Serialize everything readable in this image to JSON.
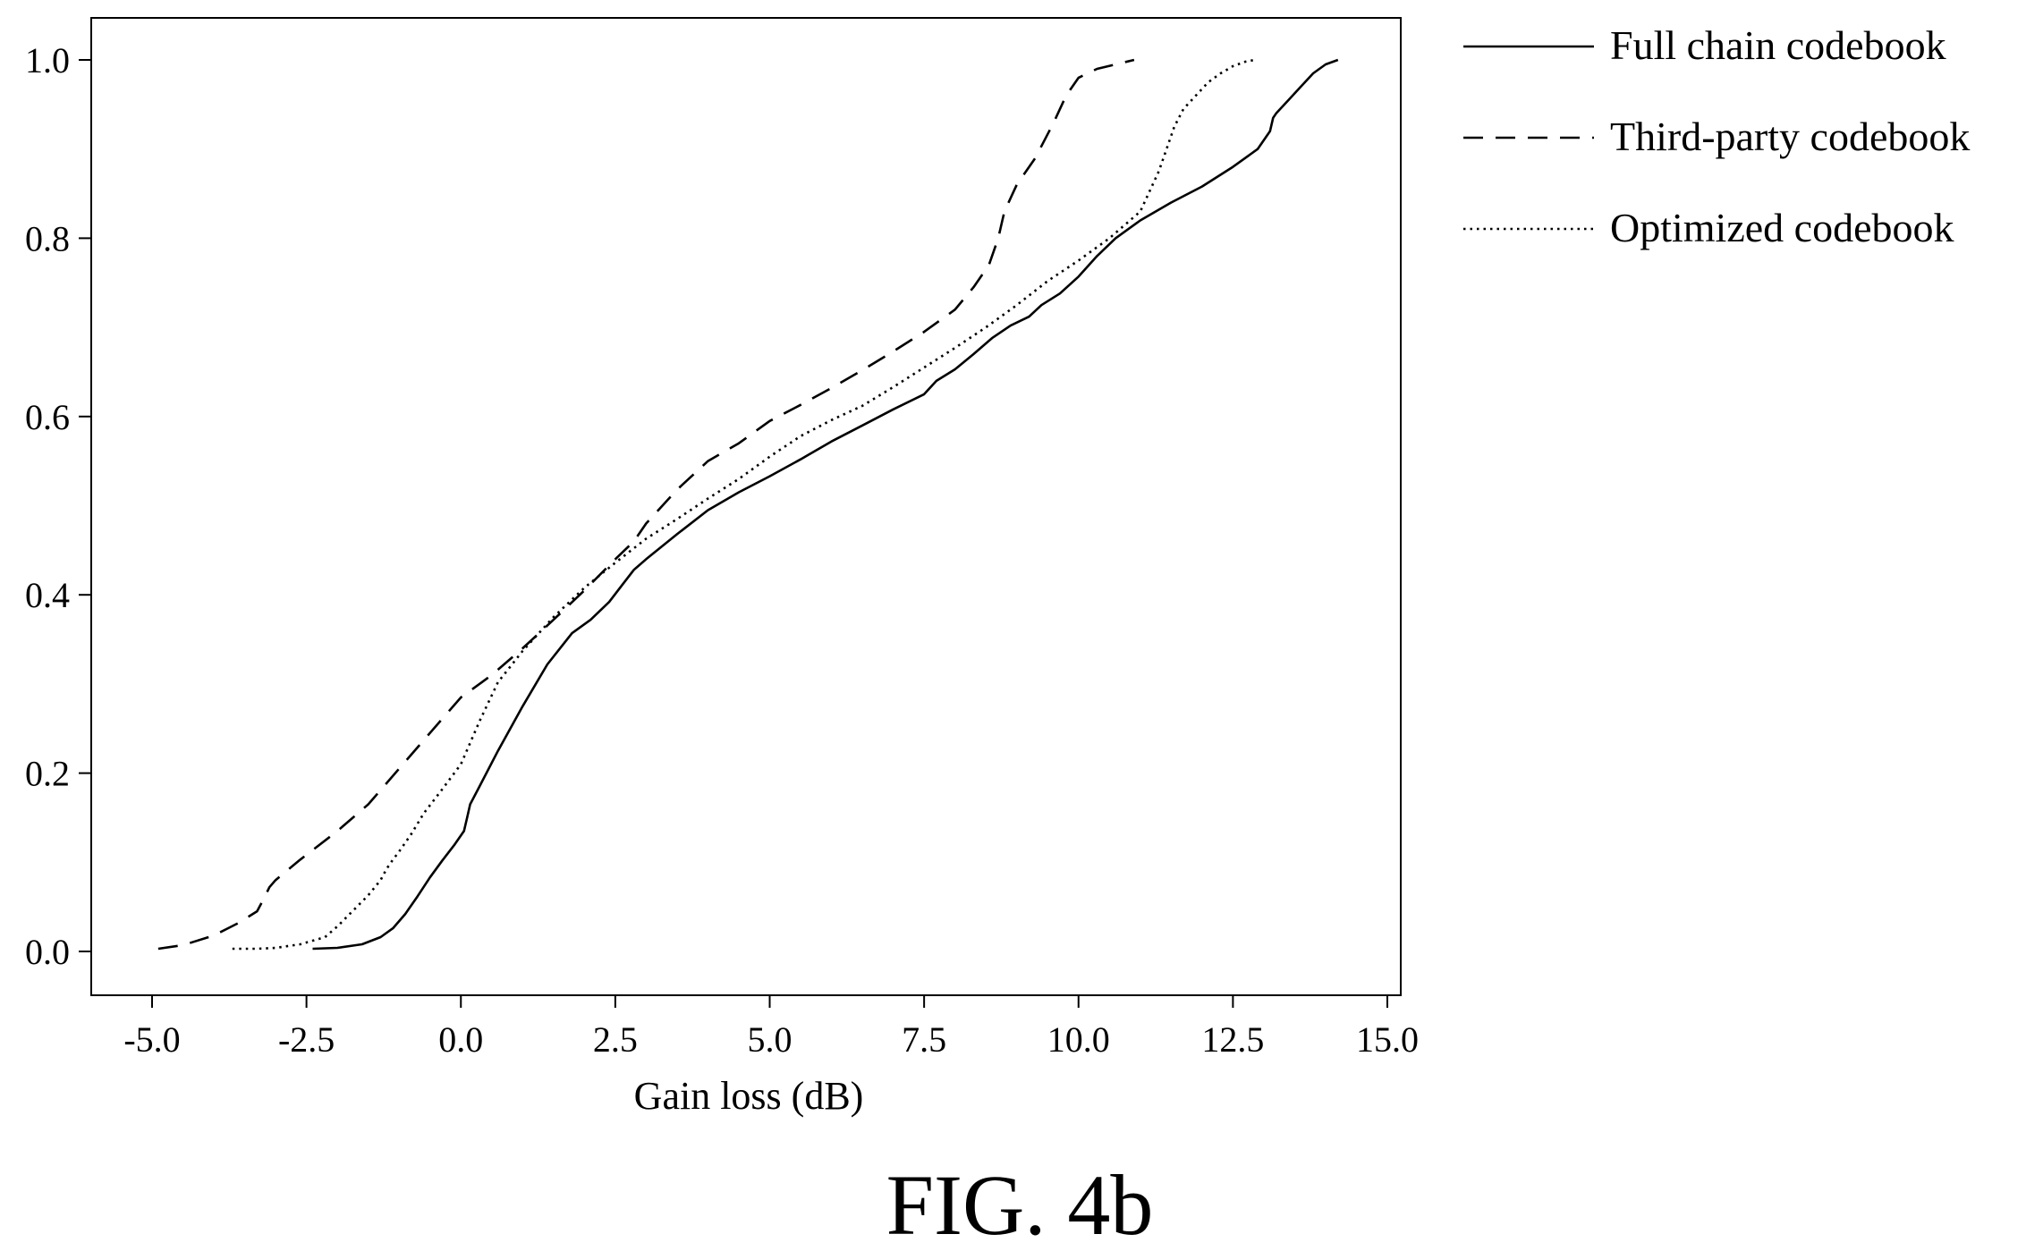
{
  "chart_data": {
    "type": "line",
    "title": "",
    "caption": "FIG. 4b",
    "xlabel": "Gain loss (dB)",
    "ylabel": "",
    "xlim": [
      -5.5,
      15.2
    ],
    "ylim": [
      -0.05,
      1.045
    ],
    "x_ticks": [
      -5.0,
      -2.5,
      0.0,
      2.5,
      5.0,
      7.5,
      10.0,
      12.5,
      15.0
    ],
    "x_tick_labels": [
      "-5.0",
      "-2.5",
      "0.0",
      "2.5",
      "5.0",
      "7.5",
      "10.0",
      "12.5",
      "15.0"
    ],
    "y_ticks": [
      0.0,
      0.2,
      0.4,
      0.6,
      0.8,
      1.0
    ],
    "y_tick_labels": [
      "0.0",
      "0.2",
      "0.4",
      "0.6",
      "0.8",
      "1.0"
    ],
    "grid": false,
    "legend_position": "outside-top-right",
    "series": [
      {
        "name": "Full chain codebook",
        "line_style": "solid",
        "color": "#000000",
        "x": [
          -2.4,
          -2.0,
          -1.6,
          -1.3,
          -1.1,
          -0.9,
          -0.7,
          -0.5,
          -0.3,
          -0.1,
          0.05,
          0.1,
          0.15,
          0.3,
          0.6,
          1.0,
          1.4,
          1.8,
          2.1,
          2.4,
          2.6,
          2.8,
          3.0,
          3.5,
          4.0,
          4.5,
          5.0,
          5.5,
          6.0,
          6.5,
          7.0,
          7.5,
          7.7,
          8.0,
          8.3,
          8.6,
          8.9,
          9.2,
          9.4,
          9.7,
          10.0,
          10.3,
          10.6,
          11.0,
          11.5,
          12.0,
          12.5,
          12.9,
          13.1,
          13.15,
          13.2,
          13.4,
          13.6,
          13.8,
          14.0,
          14.2
        ],
        "y": [
          0.003,
          0.004,
          0.008,
          0.016,
          0.026,
          0.042,
          0.062,
          0.083,
          0.102,
          0.12,
          0.135,
          0.15,
          0.165,
          0.185,
          0.225,
          0.275,
          0.322,
          0.357,
          0.372,
          0.392,
          0.41,
          0.428,
          0.44,
          0.468,
          0.495,
          0.515,
          0.533,
          0.552,
          0.572,
          0.59,
          0.608,
          0.625,
          0.64,
          0.653,
          0.67,
          0.688,
          0.702,
          0.712,
          0.725,
          0.738,
          0.757,
          0.78,
          0.8,
          0.82,
          0.84,
          0.858,
          0.88,
          0.9,
          0.92,
          0.935,
          0.94,
          0.955,
          0.97,
          0.985,
          0.995,
          1.0
        ]
      },
      {
        "name": "Third-party codebook",
        "line_style": "dashed",
        "color": "#000000",
        "x": [
          -4.9,
          -4.5,
          -4.0,
          -3.6,
          -3.3,
          -3.2,
          -3.1,
          -3.0,
          -2.6,
          -2.0,
          -1.5,
          -1.0,
          -0.5,
          0.0,
          0.5,
          1.0,
          1.5,
          2.0,
          2.5,
          2.8,
          3.0,
          3.5,
          4.0,
          4.5,
          5.0,
          5.5,
          6.0,
          6.5,
          7.0,
          7.5,
          8.0,
          8.3,
          8.55,
          8.7,
          8.8,
          9.0,
          9.3,
          9.6,
          9.8,
          10.0,
          10.3,
          10.6,
          10.9
        ],
        "y": [
          0.003,
          0.007,
          0.018,
          0.032,
          0.045,
          0.058,
          0.072,
          0.08,
          0.103,
          0.135,
          0.165,
          0.205,
          0.245,
          0.285,
          0.31,
          0.34,
          0.372,
          0.405,
          0.44,
          0.46,
          0.48,
          0.518,
          0.55,
          0.57,
          0.595,
          0.613,
          0.632,
          0.652,
          0.673,
          0.695,
          0.72,
          0.745,
          0.77,
          0.8,
          0.83,
          0.86,
          0.89,
          0.93,
          0.96,
          0.98,
          0.99,
          0.995,
          1.0
        ]
      },
      {
        "name": "Optimized codebook",
        "line_style": "dotted",
        "color": "#000000",
        "x": [
          -3.7,
          -3.3,
          -3.0,
          -2.6,
          -2.2,
          -2.0,
          -1.8,
          -1.5,
          -1.3,
          -1.2,
          -1.1,
          -1.0,
          -0.8,
          -0.6,
          -0.3,
          0.0,
          0.3,
          0.6,
          1.0,
          1.5,
          2.0,
          2.5,
          3.0,
          3.5,
          4.0,
          4.5,
          5.0,
          5.5,
          6.0,
          6.5,
          7.0,
          7.5,
          8.0,
          8.5,
          9.0,
          9.5,
          10.0,
          10.5,
          11.0,
          11.3,
          11.45,
          11.55,
          11.7,
          11.9,
          12.1,
          12.3,
          12.5,
          12.7,
          12.85
        ],
        "y": [
          0.003,
          0.003,
          0.004,
          0.008,
          0.016,
          0.028,
          0.042,
          0.063,
          0.08,
          0.093,
          0.103,
          0.112,
          0.132,
          0.155,
          0.182,
          0.21,
          0.258,
          0.302,
          0.337,
          0.375,
          0.408,
          0.436,
          0.463,
          0.485,
          0.508,
          0.53,
          0.555,
          0.578,
          0.596,
          0.612,
          0.633,
          0.655,
          0.677,
          0.7,
          0.725,
          0.752,
          0.775,
          0.8,
          0.83,
          0.875,
          0.905,
          0.925,
          0.945,
          0.96,
          0.975,
          0.985,
          0.993,
          0.998,
          1.0
        ]
      }
    ]
  }
}
